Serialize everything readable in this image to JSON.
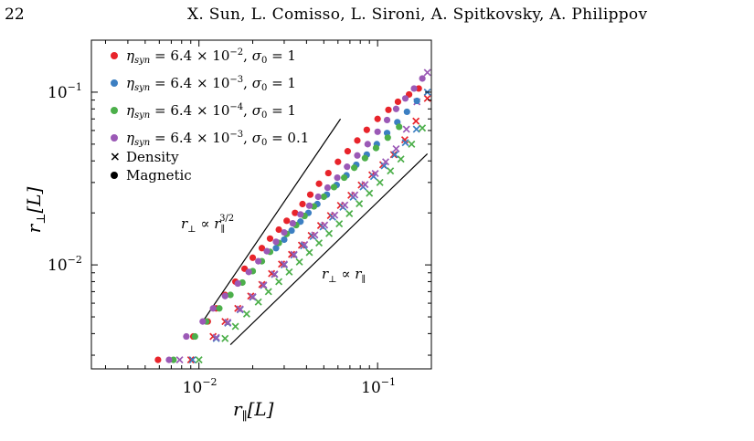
{
  "header": {
    "page_number": "22",
    "authors": "X. Sun, L. Comisso, L. Sironi, A. Spitkovsky, A. Philippov"
  },
  "chart_data": {
    "type": "scatter",
    "xscale": "log",
    "yscale": "log",
    "xlim": [
      0.0025,
      0.2
    ],
    "ylim": [
      0.0025,
      0.2
    ],
    "grid": false,
    "legend_position": "top-left",
    "xlabel": {
      "base": "r",
      "sub": "∥",
      "unit": "[L]"
    },
    "ylabel": {
      "base": "r",
      "sub": "⊥",
      "unit": "[L]"
    },
    "xticks": [
      {
        "value": 0.01,
        "mantissa": "10",
        "exp": "−2"
      },
      {
        "value": 0.1,
        "mantissa": "10",
        "exp": "−1"
      }
    ],
    "yticks": [
      {
        "value": 0.01,
        "mantissa": "10",
        "exp": "−2"
      },
      {
        "value": 0.1,
        "mantissa": "10",
        "exp": "−1"
      }
    ],
    "legend": [
      {
        "symbol": "Magnetic",
        "color": "#e8242b",
        "label": "η_syn = 6.4 × 10⁻², σ₀ = 1"
      },
      {
        "symbol": "Magnetic",
        "color": "#3c7fc2",
        "label": "η_syn = 6.4 × 10⁻³, σ₀ = 1"
      },
      {
        "symbol": "Magnetic",
        "color": "#4caf4a",
        "label": "η_syn = 6.4 × 10⁻⁴, σ₀ = 1"
      },
      {
        "symbol": "Magnetic",
        "color": "#9b59b6",
        "label": "η_syn = 6.4 × 10⁻³, σ₀ = 0.1"
      },
      {
        "symbol": "Density",
        "color": "#000000",
        "label": "Density"
      },
      {
        "symbol": "Magnetic",
        "color": "#000000",
        "label": "Magnetic"
      }
    ],
    "annotations": [
      {
        "text": "r⊥ ∝ r∥^(3/2)",
        "base": "r",
        "sub1": "⊥",
        "mid": " ∝ ",
        "base2": "r",
        "sub2": "∥",
        "sup": "3/2"
      },
      {
        "text": "r⊥ ∝ r∥",
        "base": "r",
        "sub1": "⊥",
        "mid": " ∝ ",
        "base2": "r",
        "sub2": "∥"
      }
    ],
    "reference_lines": [
      {
        "slope": 1.5,
        "from": [
          0.0105,
          0.0047
        ],
        "to": [
          0.062,
          0.07
        ]
      },
      {
        "slope": 1.0,
        "from": [
          0.015,
          0.00345
        ],
        "to": [
          0.19,
          0.044
        ]
      }
    ],
    "series": [
      {
        "name": "η_syn = 6.4 × 10⁻², σ₀ = 1",
        "kind": "Magnetic",
        "color": "#e8242b",
        "x": [
          0.0059,
          0.0093,
          0.0112,
          0.0125,
          0.014,
          0.016,
          0.018,
          0.02,
          0.0225,
          0.025,
          0.028,
          0.031,
          0.0345,
          0.038,
          0.042,
          0.047,
          0.053,
          0.06,
          0.068,
          0.077,
          0.087,
          0.1,
          0.115,
          0.13,
          0.15,
          0.17
        ],
        "y": [
          0.00282,
          0.00385,
          0.0047,
          0.0056,
          0.0067,
          0.008,
          0.0095,
          0.011,
          0.0125,
          0.0142,
          0.016,
          0.018,
          0.02,
          0.0225,
          0.0255,
          0.0295,
          0.034,
          0.0395,
          0.0455,
          0.0525,
          0.0605,
          0.07,
          0.079,
          0.088,
          0.097,
          0.105
        ]
      },
      {
        "name": "η_syn = 6.4 × 10⁻³, σ₀ = 1",
        "kind": "Magnetic",
        "color": "#3c7fc2",
        "x": [
          0.027,
          0.03,
          0.033,
          0.037,
          0.041,
          0.046,
          0.052,
          0.059,
          0.067,
          0.076,
          0.087,
          0.099,
          0.113,
          0.129,
          0.146,
          0.166
        ],
        "y": [
          0.0125,
          0.014,
          0.0158,
          0.0178,
          0.02,
          0.0225,
          0.0255,
          0.029,
          0.033,
          0.038,
          0.0435,
          0.05,
          0.058,
          0.067,
          0.077,
          0.089
        ]
      },
      {
        "name": "η_syn = 6.4 × 10⁻⁴, σ₀ = 1",
        "kind": "Magnetic",
        "color": "#4caf4a",
        "x": [
          0.0072,
          0.0095,
          0.011,
          0.013,
          0.015,
          0.0175,
          0.02,
          0.0225,
          0.025,
          0.028,
          0.031,
          0.035,
          0.039,
          0.044,
          0.05,
          0.057,
          0.065,
          0.074,
          0.085,
          0.098,
          0.114,
          0.132
        ],
        "y": [
          0.00282,
          0.00385,
          0.0047,
          0.0056,
          0.0067,
          0.0079,
          0.0092,
          0.0105,
          0.0119,
          0.0134,
          0.0151,
          0.017,
          0.0192,
          0.0218,
          0.0248,
          0.0282,
          0.032,
          0.0365,
          0.0415,
          0.0475,
          0.0545,
          0.063
        ]
      },
      {
        "name": "η_syn = 6.4 × 10⁻³, σ₀ = 0.1",
        "kind": "Magnetic",
        "color": "#9b59b6",
        "x": [
          0.0068,
          0.0085,
          0.0105,
          0.012,
          0.014,
          0.0165,
          0.019,
          0.0215,
          0.024,
          0.027,
          0.03,
          0.0335,
          0.037,
          0.0415,
          0.0465,
          0.0525,
          0.0595,
          0.0675,
          0.077,
          0.088,
          0.1,
          0.113,
          0.127,
          0.143,
          0.16,
          0.178
        ],
        "y": [
          0.00282,
          0.00385,
          0.0047,
          0.0056,
          0.0066,
          0.0078,
          0.0091,
          0.0105,
          0.012,
          0.0136,
          0.0154,
          0.0174,
          0.0196,
          0.022,
          0.0248,
          0.028,
          0.032,
          0.037,
          0.043,
          0.05,
          0.059,
          0.069,
          0.08,
          0.092,
          0.105,
          0.12
        ]
      },
      {
        "name": "η_syn = 6.4 × 10⁻², σ₀ = 1",
        "kind": "Density",
        "color": "#e8242b",
        "x": [
          0.009,
          0.012,
          0.014,
          0.0165,
          0.0195,
          0.0225,
          0.0255,
          0.029,
          0.033,
          0.0375,
          0.0425,
          0.048,
          0.0545,
          0.062,
          0.071,
          0.081,
          0.093,
          0.107,
          0.123,
          0.142,
          0.164,
          0.19
        ],
        "y": [
          0.00282,
          0.00385,
          0.0047,
          0.0056,
          0.0066,
          0.0077,
          0.0089,
          0.0101,
          0.0115,
          0.013,
          0.0148,
          0.0169,
          0.0193,
          0.0221,
          0.0253,
          0.029,
          0.0332,
          0.038,
          0.0435,
          0.053,
          0.068,
          0.092
        ]
      },
      {
        "name": "η_syn = 6.4 × 10⁻³, σ₀ = 1",
        "kind": "Density",
        "color": "#3c7fc2",
        "x": [
          0.0092,
          0.0125,
          0.0145,
          0.017,
          0.02,
          0.023,
          0.0265,
          0.03,
          0.034,
          0.0385,
          0.0435,
          0.0495,
          0.056,
          0.064,
          0.073,
          0.083,
          0.095,
          0.109,
          0.125,
          0.143,
          0.165,
          0.19
        ],
        "y": [
          0.00282,
          0.00375,
          0.0046,
          0.0055,
          0.0065,
          0.0076,
          0.0088,
          0.01,
          0.0114,
          0.0129,
          0.0146,
          0.0166,
          0.0189,
          0.0216,
          0.0247,
          0.0283,
          0.0325,
          0.0375,
          0.0435,
          0.051,
          0.061,
          0.1
        ]
      },
      {
        "name": "η_syn = 6.4 × 10⁻⁴, σ₀ = 1",
        "kind": "Density",
        "color": "#4caf4a",
        "x": [
          0.01,
          0.014,
          0.016,
          0.0185,
          0.0215,
          0.0245,
          0.028,
          0.032,
          0.0365,
          0.0415,
          0.047,
          0.0535,
          0.061,
          0.0695,
          0.079,
          0.09,
          0.103,
          0.118,
          0.135,
          0.155,
          0.178
        ],
        "y": [
          0.00282,
          0.00375,
          0.0044,
          0.0052,
          0.0061,
          0.007,
          0.008,
          0.0091,
          0.0104,
          0.0118,
          0.0134,
          0.0152,
          0.0173,
          0.0198,
          0.0226,
          0.026,
          0.03,
          0.035,
          0.041,
          0.05,
          0.062
        ]
      },
      {
        "name": "η_syn = 6.4 × 10⁻³, σ₀ = 0.1",
        "kind": "Density",
        "color": "#9b59b6",
        "x": [
          0.0078,
          0.0125,
          0.0145,
          0.017,
          0.02,
          0.023,
          0.0265,
          0.03,
          0.034,
          0.039,
          0.0445,
          0.0505,
          0.0575,
          0.0655,
          0.0745,
          0.085,
          0.097,
          0.111,
          0.127,
          0.145,
          0.166,
          0.19
        ],
        "y": [
          0.00282,
          0.0038,
          0.00465,
          0.00555,
          0.00655,
          0.00765,
          0.00885,
          0.0101,
          0.0115,
          0.0131,
          0.0149,
          0.017,
          0.0194,
          0.0222,
          0.0254,
          0.0292,
          0.0338,
          0.0395,
          0.047,
          0.061,
          0.088,
          0.13
        ]
      }
    ]
  }
}
